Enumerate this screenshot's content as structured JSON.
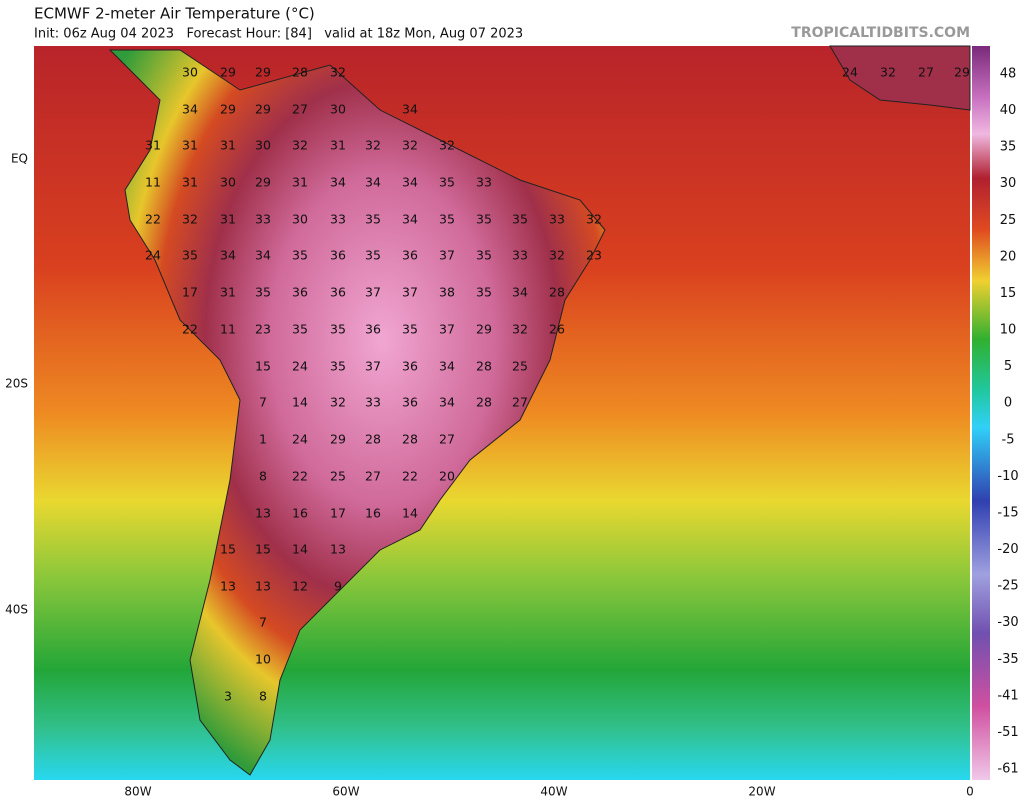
{
  "header": {
    "title": "ECMWF 2-meter Air Temperature (°C)",
    "subtitle": "Init: 06z Aug 04 2023   Forecast Hour: [84]   valid at 18z Mon, Aug 07 2023",
    "watermark": "TROPICALTIDBITS.COM"
  },
  "lat_labels": [
    "EQ",
    "20S",
    "40S"
  ],
  "lon_labels": [
    "80W",
    "60W",
    "40W",
    "20W",
    "0"
  ],
  "colorbar_labels": [
    "48",
    "40",
    "35",
    "30",
    "25",
    "20",
    "15",
    "10",
    "5",
    "0",
    "-5",
    "-10",
    "-15",
    "-20",
    "-25",
    "-30",
    "-35",
    "-41",
    "-51",
    "-61"
  ],
  "temperature_rows": [
    [
      30,
      29,
      29,
      28,
      32
    ],
    [
      34,
      29,
      29,
      27,
      30,
      null,
      34
    ],
    [
      31,
      31,
      31,
      30,
      32,
      31,
      32,
      32,
      32
    ],
    [
      11,
      31,
      30,
      29,
      31,
      34,
      34,
      34,
      35,
      33
    ],
    [
      22,
      32,
      31,
      33,
      30,
      33,
      35,
      34,
      35,
      35,
      35,
      33,
      32
    ],
    [
      24,
      35,
      34,
      34,
      35,
      36,
      35,
      36,
      37,
      35,
      33,
      32,
      23
    ],
    [
      17,
      31,
      35,
      36,
      36,
      37,
      37,
      38,
      35,
      34,
      28
    ],
    [
      22,
      11,
      23,
      35,
      35,
      36,
      35,
      37,
      29,
      32,
      26
    ],
    [
      15,
      24,
      35,
      37,
      36,
      34,
      28,
      25
    ],
    [
      7,
      14,
      32,
      33,
      36,
      34,
      28,
      27
    ],
    [
      1,
      24,
      29,
      28,
      28,
      27
    ],
    [
      8,
      22,
      25,
      27,
      22,
      20
    ],
    [
      13,
      16,
      17,
      16,
      14
    ],
    [
      15,
      15,
      14,
      13
    ],
    [
      13,
      13,
      12,
      9
    ],
    [
      7
    ],
    [
      10
    ],
    [
      3,
      8
    ]
  ],
  "africa_labels": [
    24,
    32,
    27,
    29
  ]
}
